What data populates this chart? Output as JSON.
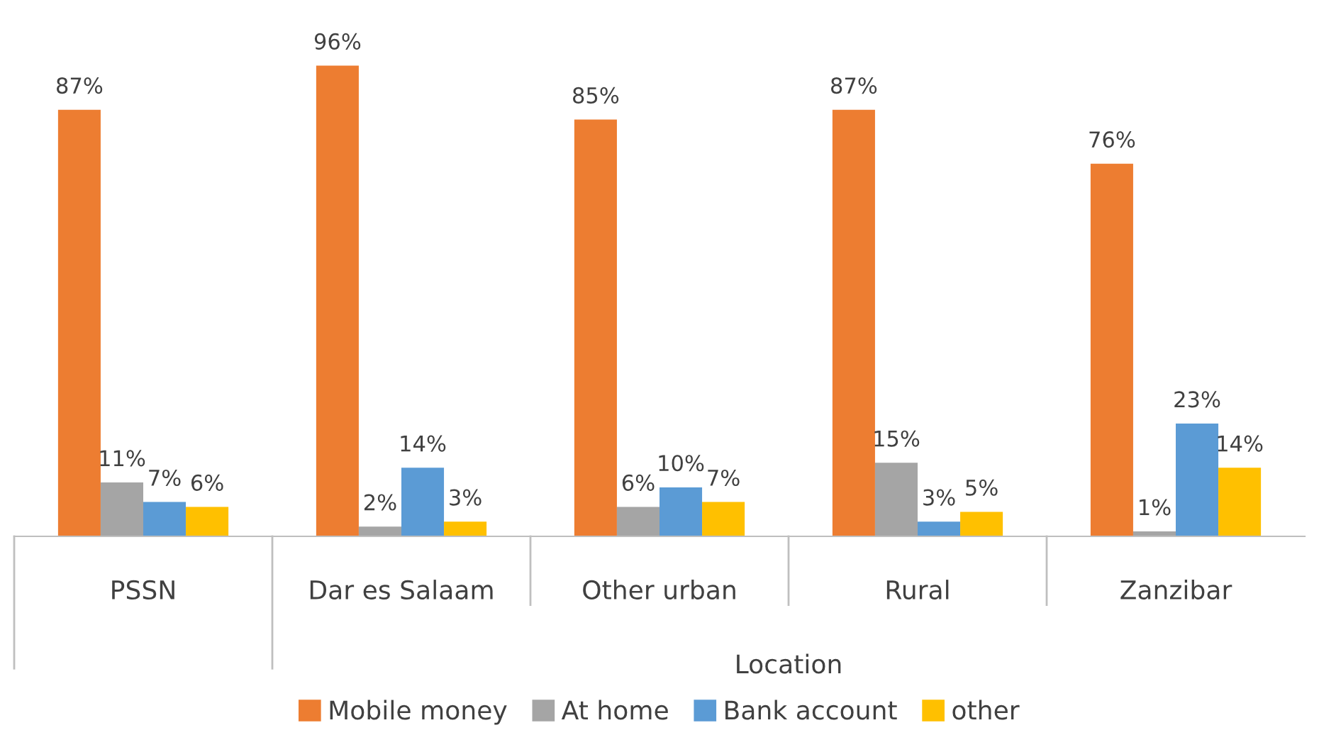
{
  "chart_data": {
    "type": "bar",
    "xlabel": "Location",
    "categories": [
      "PSSN",
      "Dar es Salaam",
      "Other urban",
      "Rural",
      "Zanzibar"
    ],
    "series": [
      {
        "name": "Mobile money",
        "color": "#ed7d31",
        "values": [
          87,
          96,
          85,
          87,
          76
        ],
        "value_labels": [
          "87%",
          "96%",
          "85%",
          "87%",
          "76%"
        ]
      },
      {
        "name": "At home",
        "color": "#a5a5a5",
        "values": [
          11,
          2,
          6,
          15,
          1
        ],
        "value_labels": [
          "11%",
          "2%",
          "6%",
          "15%",
          "1%"
        ]
      },
      {
        "name": "Bank account",
        "color": "#5b9bd5",
        "values": [
          7,
          14,
          10,
          3,
          23
        ],
        "value_labels": [
          "7%",
          "14%",
          "10%",
          "3%",
          "23%"
        ]
      },
      {
        "name": "other",
        "color": "#ffc000",
        "values": [
          6,
          3,
          7,
          5,
          14
        ],
        "value_labels": [
          "6%",
          "3%",
          "7%",
          "5%",
          "14%"
        ]
      }
    ],
    "relative": false,
    "grid": false,
    "legend": "bottom"
  }
}
